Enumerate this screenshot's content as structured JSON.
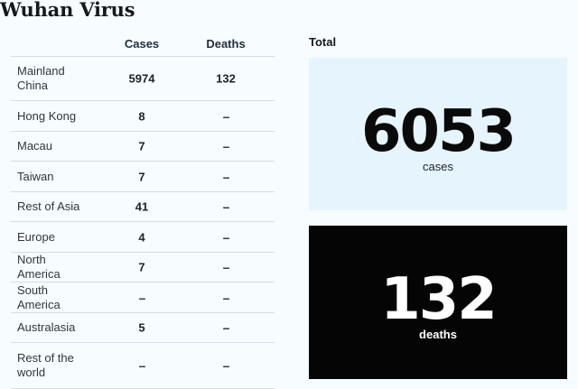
{
  "page": {
    "title": "Wuhan Virus"
  },
  "table": {
    "headers": {
      "cases": "Cases",
      "deaths": "Deaths"
    },
    "rows": [
      {
        "region": "Mainland China",
        "cases": "5974",
        "deaths": "132"
      },
      {
        "region": "Hong Kong",
        "cases": "8",
        "deaths": "--"
      },
      {
        "region": "Macau",
        "cases": "7",
        "deaths": "--"
      },
      {
        "region": "Taiwan",
        "cases": "7",
        "deaths": "--"
      },
      {
        "region": "Rest of Asia",
        "cases": "41",
        "deaths": "--"
      },
      {
        "region": "Europe",
        "cases": "4",
        "deaths": "--"
      },
      {
        "region": "North America",
        "cases": "7",
        "deaths": "--"
      },
      {
        "region": "South America",
        "cases": "--",
        "deaths": "--"
      },
      {
        "region": "Australasia",
        "cases": "5",
        "deaths": "--"
      },
      {
        "region": "Rest of the world",
        "cases": "--",
        "deaths": "--"
      }
    ]
  },
  "totals": {
    "label": "Total",
    "cases_value": "6053",
    "cases_label": "cases",
    "deaths_value": "132",
    "deaths_label": "deaths"
  },
  "colors": {
    "background": "#f6fcff",
    "cases_box": "#e6f4fd",
    "deaths_box": "#050505"
  }
}
